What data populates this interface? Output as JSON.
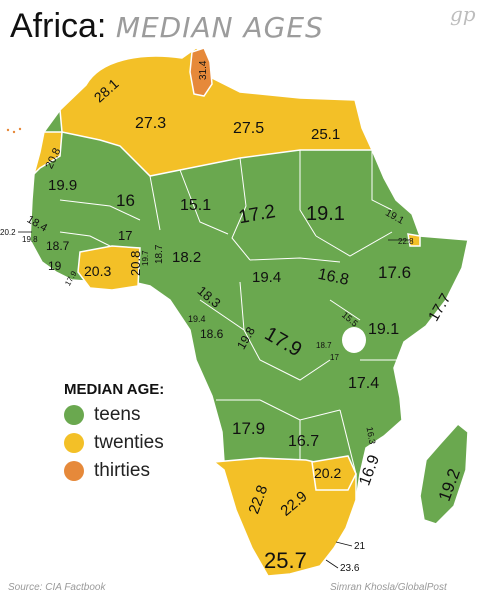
{
  "title": {
    "main": "Africa:",
    "sub": "MEDIAN AGES"
  },
  "logo": "gp",
  "legend": {
    "title": "MEDIAN AGE:",
    "items": [
      {
        "label": "teens",
        "color": "#6aa84f"
      },
      {
        "label": "twenties",
        "color": "#f3c027"
      },
      {
        "label": "thirties",
        "color": "#e6893a"
      }
    ]
  },
  "footer": {
    "source": "Source: CIA Factbook",
    "credit": "Simran Khosla/GlobalPost"
  },
  "colors": {
    "teens": "#6aa84f",
    "twenties": "#f3c027",
    "thirties": "#e6893a"
  },
  "values": {
    "morocco": "28.1",
    "tunisia": "31.4",
    "algeria": "27.3",
    "libya": "27.5",
    "egypt": "25.1",
    "western_sahara": "20.8",
    "mauritania": "19.9",
    "mali": "16",
    "niger": "15.1",
    "chad": "17.2",
    "sudan": "19.1",
    "eritrea": "19.1",
    "djibouti": "22.8",
    "senegal": "18.4",
    "cape_verde": "20.2",
    "gambia": "19.8",
    "guinea_bissau": "18.7",
    "guinea": "19",
    "sierra_leone": "17.9",
    "liberia": "20.3",
    "cote_divoire": "20.8",
    "ghana": "19.7",
    "togo": "18.7",
    "burkina_faso": "17",
    "nigeria": "18.2",
    "car": "19.4",
    "south_sudan": "16.8",
    "ethiopia": "17.6",
    "somalia": "17.7",
    "cameroon": "18.3",
    "eq_guinea": "19.4",
    "gabon": "18.6",
    "congo": "19.8",
    "drc": "17.9",
    "uganda": "15.5",
    "kenya": "19.1",
    "rwanda": "18.7",
    "burundi": "17",
    "tanzania": "17.4",
    "angola": "17.9",
    "zambia": "16.7",
    "malawi": "16.3",
    "mozambique": "16.9",
    "zimbabwe": "20.2",
    "namibia": "22.8",
    "botswana": "22.9",
    "madagascar": "19.2",
    "south_africa": "25.7",
    "swaziland": "21",
    "lesotho": "23.6"
  }
}
